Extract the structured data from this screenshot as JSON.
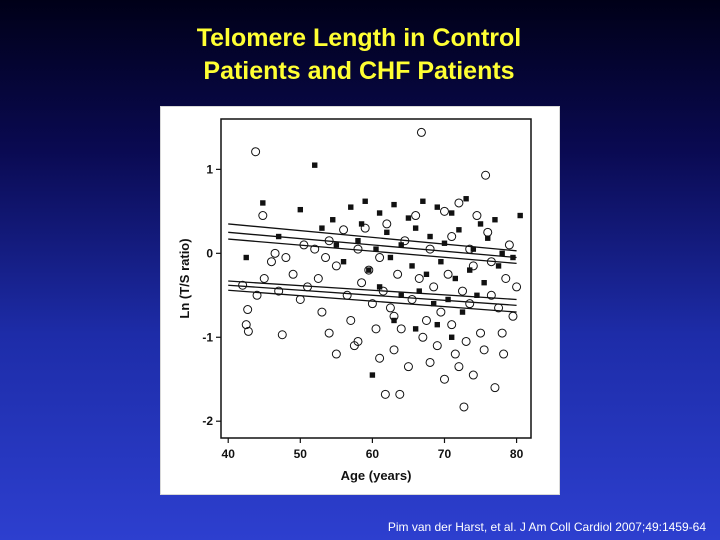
{
  "slide": {
    "title_line1": "Telomere Length in Control",
    "title_line2": "Patients and CHF Patients",
    "citation": "Pim van der Harst, et al. J Am Coll Cardiol 2007;49:1459-64",
    "background_top": "#000018",
    "background_bottom": "#2d3fcf",
    "title_color": "#ffff33"
  },
  "chart_data": {
    "type": "scatter",
    "xlabel": "Age (years)",
    "ylabel": "Ln (T/S ratio)",
    "xlim": [
      39,
      82
    ],
    "ylim": [
      -2.2,
      1.6
    ],
    "xticks": [
      40,
      50,
      60,
      70,
      80
    ],
    "yticks": [
      -2,
      -1,
      0,
      1
    ],
    "grid": false,
    "series": [
      {
        "marker": "open-circle",
        "points": [
          [
            43.8,
            1.21
          ],
          [
            66.8,
            1.44
          ],
          [
            75.7,
            0.93
          ],
          [
            44.8,
            0.45
          ],
          [
            42.0,
            -0.38
          ],
          [
            42.7,
            -0.67
          ],
          [
            42.5,
            -0.85
          ],
          [
            42.8,
            -0.93
          ],
          [
            47.5,
            -0.97
          ],
          [
            55.0,
            -1.2
          ],
          [
            58.0,
            -1.05
          ],
          [
            61.0,
            -1.25
          ],
          [
            63.0,
            -1.15
          ],
          [
            65.0,
            -1.35
          ],
          [
            68.0,
            -1.3
          ],
          [
            70.0,
            -1.5
          ],
          [
            72.0,
            -1.35
          ],
          [
            74.0,
            -1.45
          ],
          [
            77.0,
            -1.6
          ],
          [
            78.2,
            -1.2
          ],
          [
            61.8,
            -1.68
          ],
          [
            63.8,
            -1.68
          ],
          [
            72.7,
            -1.83
          ],
          [
            46.0,
            -0.1
          ],
          [
            48.0,
            -0.05
          ],
          [
            52.0,
            0.05
          ],
          [
            54.0,
            0.15
          ],
          [
            56.0,
            0.28
          ],
          [
            59.0,
            0.3
          ],
          [
            62.0,
            0.35
          ],
          [
            66.0,
            0.45
          ],
          [
            70.0,
            0.5
          ],
          [
            72.0,
            0.6
          ],
          [
            74.5,
            0.45
          ],
          [
            76.0,
            0.25
          ],
          [
            79.0,
            0.1
          ],
          [
            45.0,
            -0.3
          ],
          [
            50.0,
            -0.55
          ],
          [
            53.0,
            -0.7
          ],
          [
            57.0,
            -0.8
          ],
          [
            60.0,
            -0.6
          ],
          [
            64.0,
            -0.9
          ],
          [
            67.0,
            -1.0
          ],
          [
            71.0,
            -0.85
          ],
          [
            75.0,
            -0.95
          ],
          [
            79.5,
            -0.75
          ],
          [
            80.0,
            -0.4
          ],
          [
            44.0,
            -0.5
          ],
          [
            49.0,
            -0.25
          ],
          [
            51.0,
            -0.4
          ],
          [
            55.0,
            -0.15
          ],
          [
            58.5,
            -0.35
          ],
          [
            61.5,
            -0.45
          ],
          [
            63.5,
            -0.25
          ],
          [
            65.5,
            -0.55
          ],
          [
            68.5,
            -0.4
          ],
          [
            69.5,
            -0.7
          ],
          [
            73.5,
            -0.6
          ],
          [
            76.5,
            -0.5
          ],
          [
            78.5,
            -0.3
          ],
          [
            47.0,
            -0.45
          ],
          [
            52.5,
            -0.3
          ],
          [
            56.5,
            -0.5
          ],
          [
            59.5,
            -0.2
          ],
          [
            62.5,
            -0.65
          ],
          [
            66.5,
            -0.3
          ],
          [
            70.5,
            -0.25
          ],
          [
            72.5,
            -0.45
          ],
          [
            74.0,
            -0.15
          ],
          [
            77.5,
            -0.65
          ],
          [
            54.0,
            -0.95
          ],
          [
            57.5,
            -1.1
          ],
          [
            60.5,
            -0.9
          ],
          [
            63.0,
            -0.75
          ],
          [
            67.5,
            -0.8
          ],
          [
            69.0,
            -1.1
          ],
          [
            71.5,
            -1.2
          ],
          [
            73.0,
            -1.05
          ],
          [
            75.5,
            -1.15
          ],
          [
            78.0,
            -0.95
          ],
          [
            46.5,
            0.0
          ],
          [
            50.5,
            0.1
          ],
          [
            53.5,
            -0.05
          ],
          [
            58.0,
            0.05
          ],
          [
            61.0,
            -0.05
          ],
          [
            64.5,
            0.15
          ],
          [
            68.0,
            0.05
          ],
          [
            71.0,
            0.2
          ],
          [
            73.5,
            0.05
          ],
          [
            76.5,
            -0.1
          ]
        ]
      },
      {
        "marker": "filled-square",
        "points": [
          [
            52.0,
            1.05
          ],
          [
            60.0,
            -1.45
          ],
          [
            44.8,
            0.6
          ],
          [
            50.0,
            0.52
          ],
          [
            57.0,
            0.55
          ],
          [
            59.0,
            0.62
          ],
          [
            61.0,
            0.48
          ],
          [
            63.0,
            0.58
          ],
          [
            65.0,
            0.42
          ],
          [
            67.0,
            0.62
          ],
          [
            69.0,
            0.55
          ],
          [
            71.0,
            0.48
          ],
          [
            73.0,
            0.65
          ],
          [
            75.0,
            0.35
          ],
          [
            77.0,
            0.4
          ],
          [
            80.5,
            0.45
          ],
          [
            42.5,
            -0.05
          ],
          [
            47.0,
            0.2
          ],
          [
            53.0,
            0.3
          ],
          [
            55.0,
            0.1
          ],
          [
            58.0,
            0.15
          ],
          [
            60.5,
            0.05
          ],
          [
            62.0,
            0.25
          ],
          [
            64.0,
            0.1
          ],
          [
            66.0,
            0.3
          ],
          [
            68.0,
            0.2
          ],
          [
            70.0,
            0.12
          ],
          [
            72.0,
            0.28
          ],
          [
            74.0,
            0.05
          ],
          [
            76.0,
            0.18
          ],
          [
            78.0,
            0.0
          ],
          [
            79.5,
            -0.05
          ],
          [
            56.0,
            -0.1
          ],
          [
            59.5,
            -0.2
          ],
          [
            62.5,
            -0.05
          ],
          [
            65.5,
            -0.15
          ],
          [
            67.5,
            -0.25
          ],
          [
            69.5,
            -0.1
          ],
          [
            71.5,
            -0.3
          ],
          [
            73.5,
            -0.2
          ],
          [
            75.5,
            -0.35
          ],
          [
            77.5,
            -0.15
          ],
          [
            61.0,
            -0.4
          ],
          [
            64.0,
            -0.5
          ],
          [
            66.5,
            -0.45
          ],
          [
            68.5,
            -0.6
          ],
          [
            70.5,
            -0.55
          ],
          [
            72.5,
            -0.7
          ],
          [
            74.5,
            -0.5
          ],
          [
            63.0,
            -0.8
          ],
          [
            66.0,
            -0.9
          ],
          [
            69.0,
            -0.85
          ],
          [
            71.0,
            -1.0
          ],
          [
            54.5,
            0.4
          ],
          [
            58.5,
            0.35
          ]
        ]
      }
    ],
    "regression_lines": [
      {
        "x": [
          40,
          80
        ],
        "y": [
          0.25,
          -0.05
        ]
      },
      {
        "x": [
          40,
          80
        ],
        "y": [
          0.35,
          0.03
        ]
      },
      {
        "x": [
          40,
          80
        ],
        "y": [
          0.17,
          -0.12
        ]
      },
      {
        "x": [
          40,
          80
        ],
        "y": [
          -0.33,
          -0.55
        ]
      },
      {
        "x": [
          40,
          80
        ],
        "y": [
          -0.38,
          -0.62
        ]
      },
      {
        "x": [
          40,
          80
        ],
        "y": [
          -0.44,
          -0.7
        ]
      }
    ]
  }
}
